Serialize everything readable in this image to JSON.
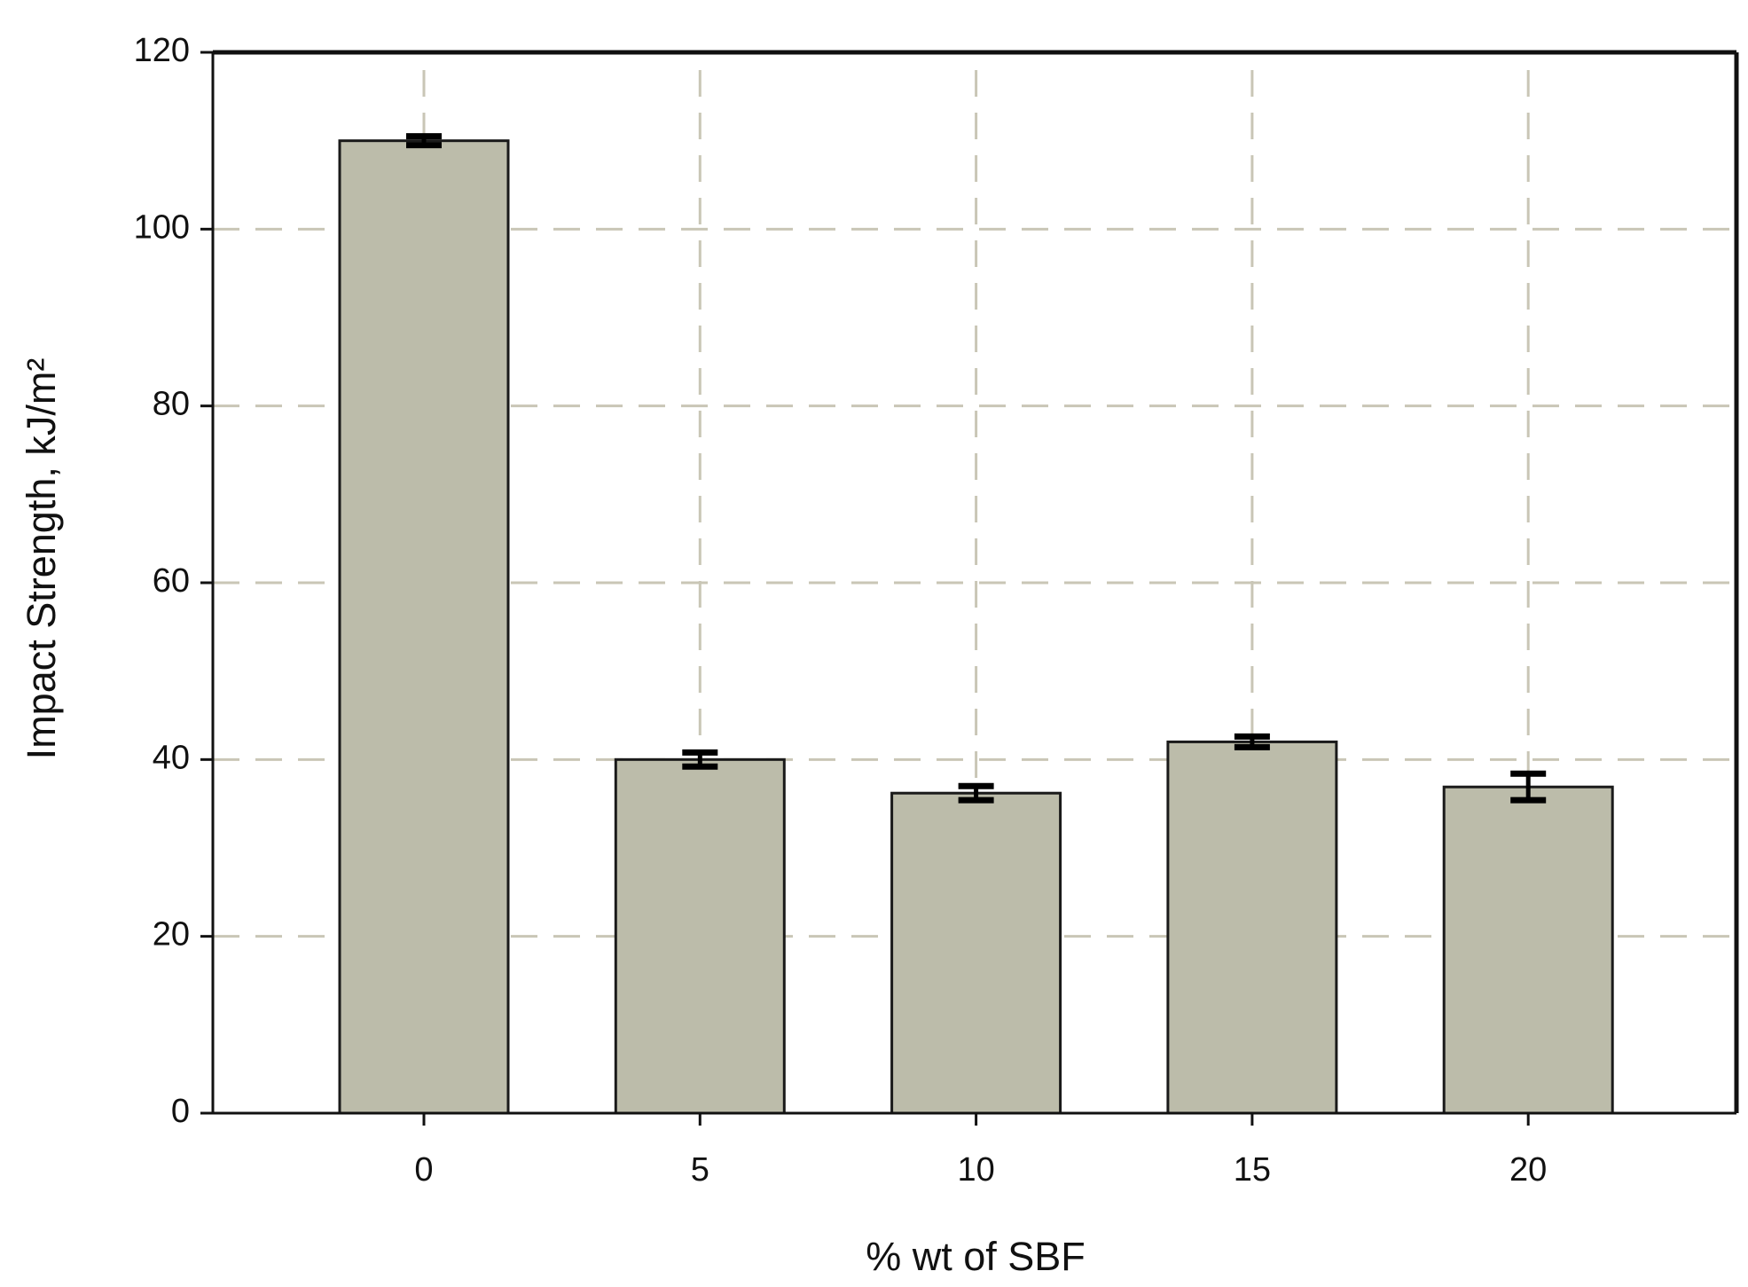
{
  "chart_data": {
    "type": "bar",
    "x_label": "% wt of SBF",
    "y_label": "Impact Strength, kJ/m²",
    "categories": [
      "0",
      "5",
      "10",
      "15",
      "20"
    ],
    "values": [
      110,
      40,
      36.2,
      42,
      36.9
    ],
    "errors": [
      0.5,
      0.8,
      0.8,
      0.6,
      1.5
    ],
    "color": "#bcbcaa",
    "ylim": [
      0,
      120
    ],
    "yticks": [
      0,
      20,
      40,
      60,
      80,
      100,
      120
    ],
    "grid": true
  }
}
